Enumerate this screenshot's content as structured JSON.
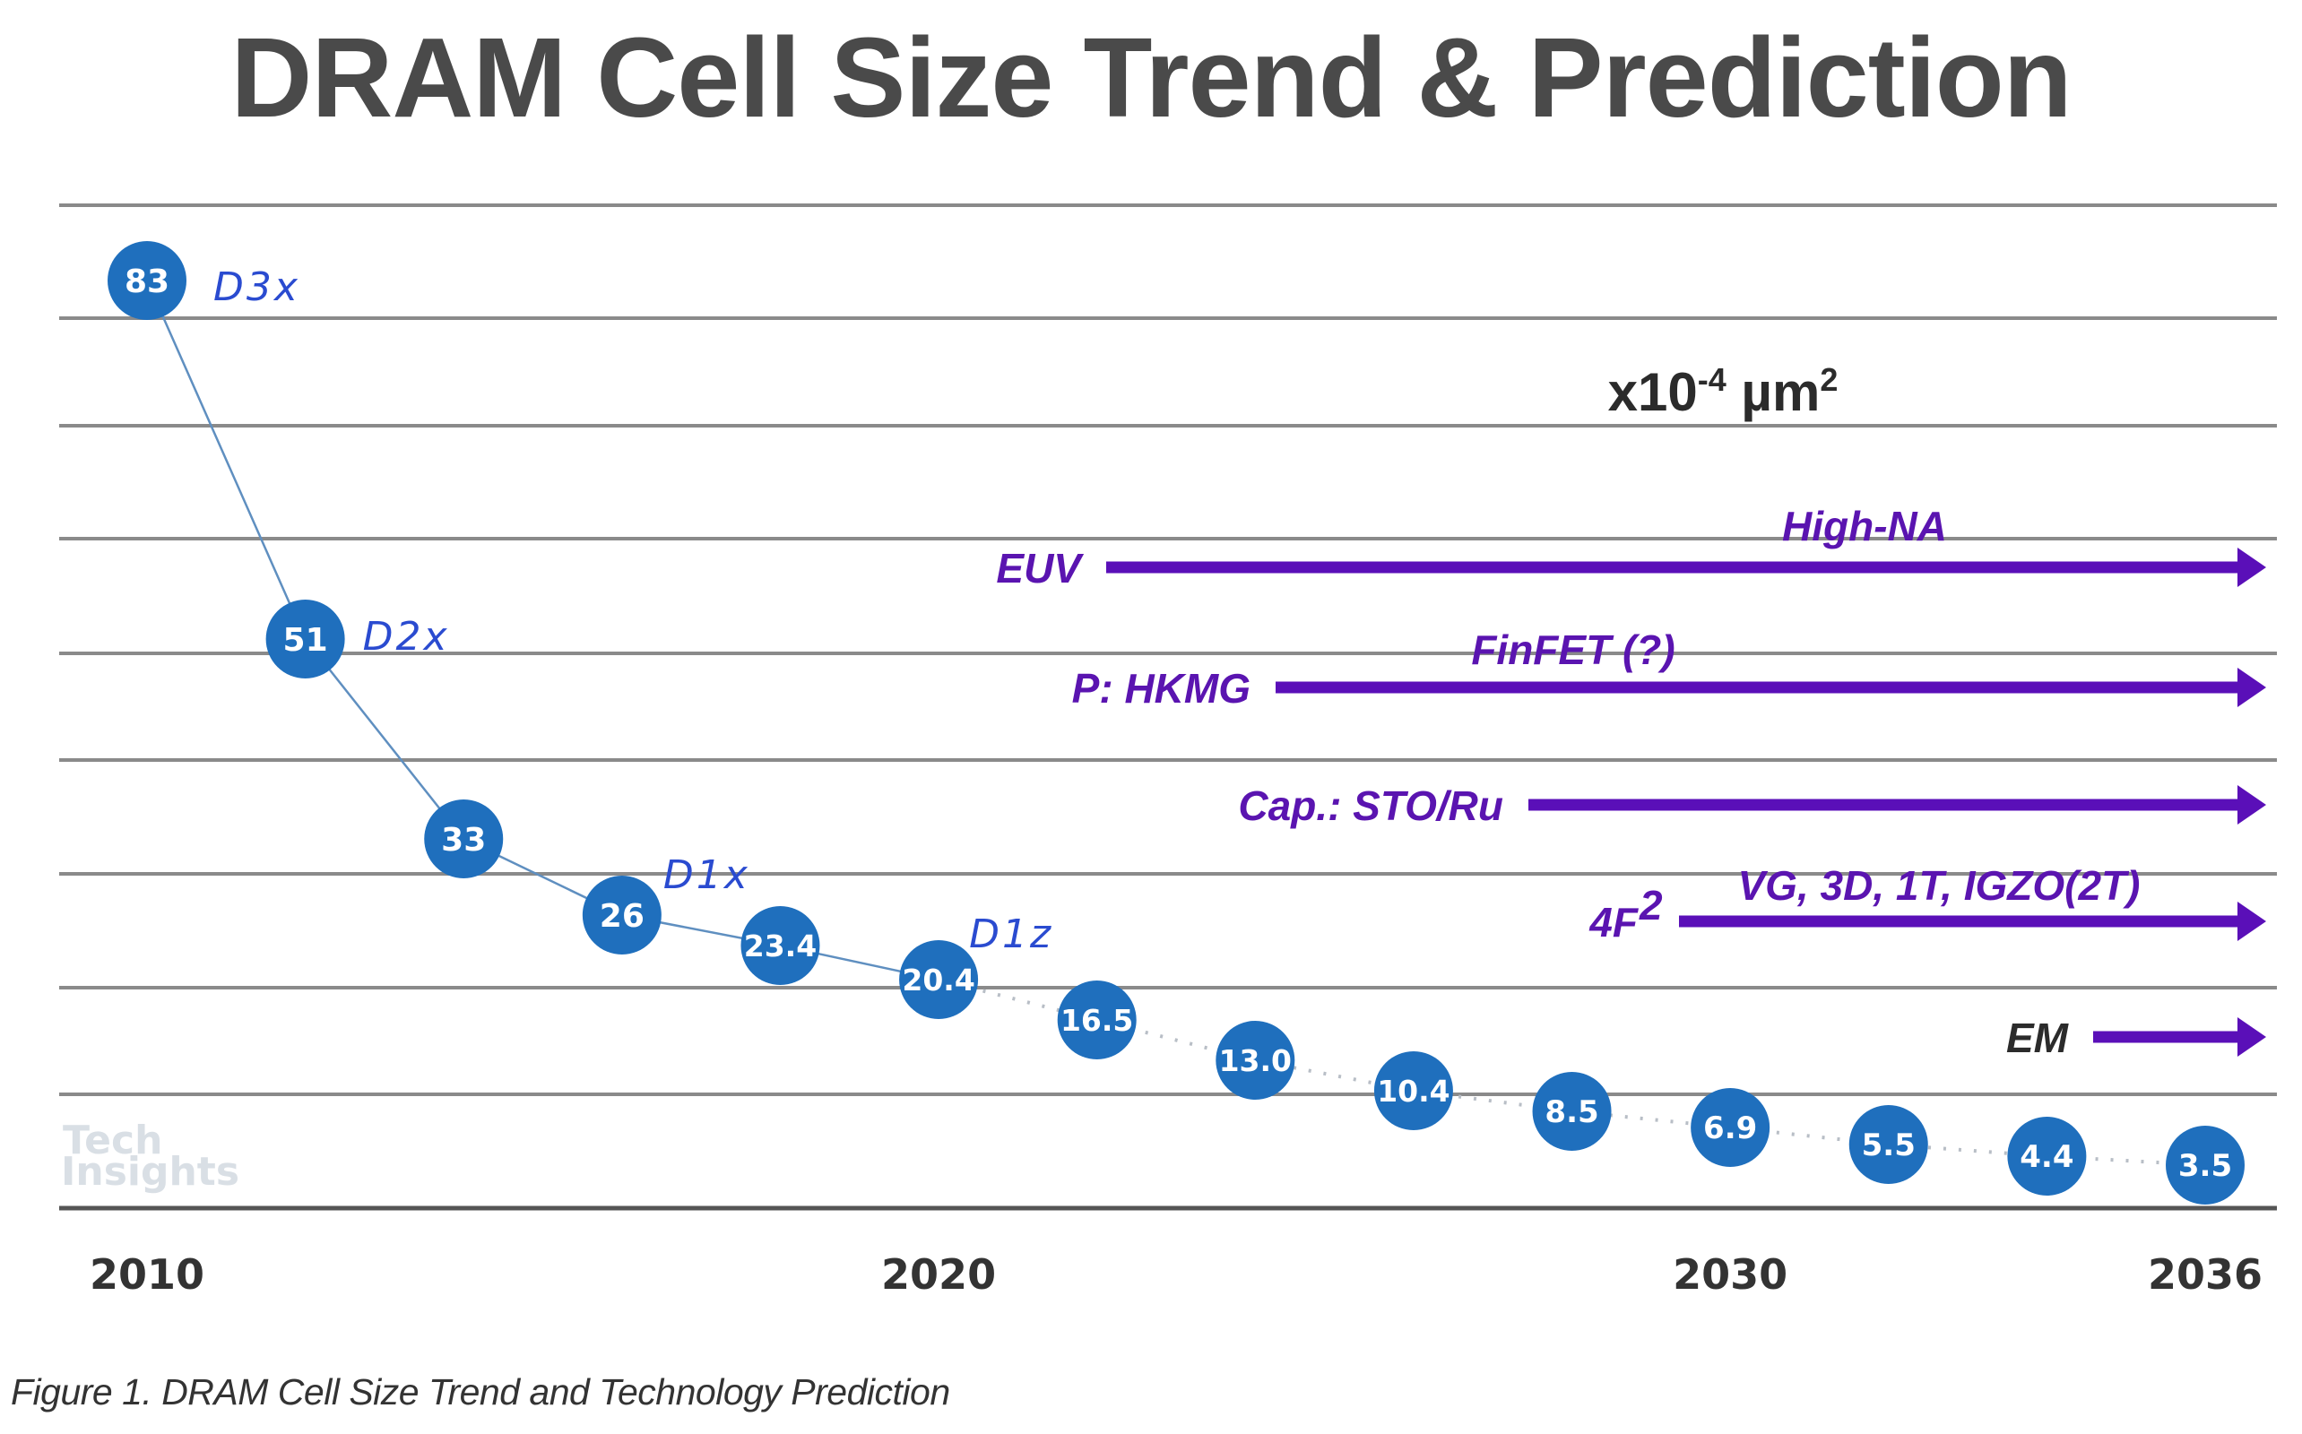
{
  "title": "DRAM Cell Size Trend & Prediction",
  "caption": "Figure 1. DRAM Cell Size Trend and Technology Prediction",
  "watermark": {
    "line1": "Tech",
    "line2": "Insights"
  },
  "colors": {
    "point": "#1f6fbd",
    "node_label": "#2a4bd0",
    "technology": "#5a0fb8",
    "title": "#4a4a4a"
  },
  "chart_data": {
    "type": "line",
    "title": "DRAM Cell Size Trend & Prediction",
    "xlabel": "",
    "ylabel": "",
    "unit_label": {
      "base": "x10",
      "exp": "-4",
      "unit": " µm",
      "unit_exp": "2"
    },
    "x_tick_labels": [
      "2010",
      "2020",
      "2030",
      "2036"
    ],
    "x_tick_positions": [
      2010,
      2020,
      2030,
      2036
    ],
    "xlim": [
      2010,
      2036
    ],
    "grid": true,
    "gridline_count": 9,
    "series": [
      {
        "name": "DRAM cell size",
        "x": [
          2010,
          2012,
          2014,
          2016,
          2018,
          2020,
          2022,
          2024,
          2026,
          2028,
          2030,
          2032,
          2034,
          2036
        ],
        "values": [
          83,
          51,
          33,
          26,
          23.4,
          20.4,
          16.5,
          13.0,
          10.4,
          8.5,
          6.9,
          5.5,
          4.4,
          3.5
        ],
        "labels": [
          "83",
          "51",
          "33",
          "26",
          "23.4",
          "20.4",
          "16.5",
          "13.0",
          "10.4",
          "8.5",
          "6.9",
          "5.5",
          "4.4",
          "3.5"
        ],
        "actual_until": 2020,
        "line_style_actual": "solid",
        "line_style_predicted": "dotted"
      }
    ],
    "node_annotations": [
      {
        "label": "D3x",
        "x": 2010
      },
      {
        "label": "D2x",
        "x": 2012
      },
      {
        "label": "D1x",
        "x": 2016
      },
      {
        "label": "D1z",
        "x": 2020
      }
    ],
    "technology_arrows": [
      {
        "label": "EUV",
        "above": "High-NA",
        "label_color": "purple"
      },
      {
        "label": "P: HKMG",
        "above": "FinFET (?)",
        "label_color": "purple"
      },
      {
        "label": "Cap.: STO/Ru",
        "above": "",
        "label_color": "purple"
      },
      {
        "label": "4F",
        "label_sup": "2",
        "above": "VG, 3D, 1T, IGZO(2T)",
        "label_color": "purple"
      },
      {
        "label": "EM",
        "above": "",
        "label_color": "dark"
      }
    ]
  }
}
